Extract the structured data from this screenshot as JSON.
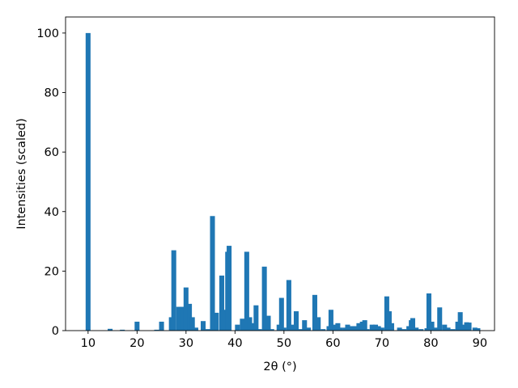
{
  "chart_data": {
    "type": "bar",
    "xlabel": "2θ (°)",
    "ylabel": "Intensities (scaled)",
    "color": "#1f77b4",
    "bar_width": 1,
    "x": [
      10,
      14.5,
      17,
      20,
      24,
      25,
      27,
      27.5,
      28.5,
      29.3,
      30,
      30.7,
      31.3,
      32,
      33.5,
      34.5,
      35.4,
      36.2,
      37.3,
      38,
      38.5,
      38.8,
      40.5,
      41.5,
      42.4,
      43,
      43.6,
      44.3,
      45,
      46,
      46.8,
      47.5,
      49,
      49.5,
      50,
      51,
      51.7,
      52.5,
      53.5,
      54.2,
      55,
      56.3,
      57,
      58,
      59.2,
      59.6,
      60.3,
      61,
      61.5,
      62.5,
      63,
      63.8,
      64.7,
      65.3,
      66,
      66.5,
      67,
      68,
      68.7,
      69.3,
      70,
      71,
      71.5,
      72,
      73.6,
      74.5,
      75.5,
      76,
      76.3,
      77,
      78,
      79.2,
      79.6,
      80.2,
      81,
      81.8,
      82.8,
      83.5,
      84.5,
      85.5,
      86,
      86.6,
      87.3,
      87.8,
      89,
      89.6
    ],
    "values": [
      100,
      0.6,
      0.3,
      3,
      0.3,
      3,
      4.5,
      27,
      8,
      8,
      14.5,
      9,
      4.5,
      1,
      3.2,
      0.5,
      38.5,
      6,
      18.5,
      7,
      26.5,
      28.5,
      2,
      4,
      26.5,
      4.5,
      2.5,
      8.5,
      0.5,
      21.5,
      5,
      0.5,
      2,
      11,
      1,
      17,
      2,
      6.5,
      0.5,
      3.5,
      1,
      12,
      4.5,
      0.5,
      1.5,
      7,
      2,
      2.5,
      1,
      1,
      2,
      1.5,
      1.5,
      2.5,
      3,
      3.5,
      0.5,
      2,
      2,
      1.5,
      1,
      11.5,
      6.5,
      2.5,
      1,
      0.5,
      1.5,
      3.5,
      4.2,
      1,
      0.5,
      0.8,
      12.5,
      3,
      1,
      7.8,
      2,
      1,
      0.5,
      3,
      6.2,
      2,
      2.8,
      2.7,
      1,
      0.8
    ],
    "xlim": [
      5.4,
      93.0
    ],
    "ylim": [
      0,
      105.4
    ],
    "xticks": [
      10,
      20,
      30,
      40,
      50,
      60,
      70,
      80,
      90
    ],
    "yticks": [
      0,
      20,
      40,
      60,
      80,
      100
    ]
  }
}
